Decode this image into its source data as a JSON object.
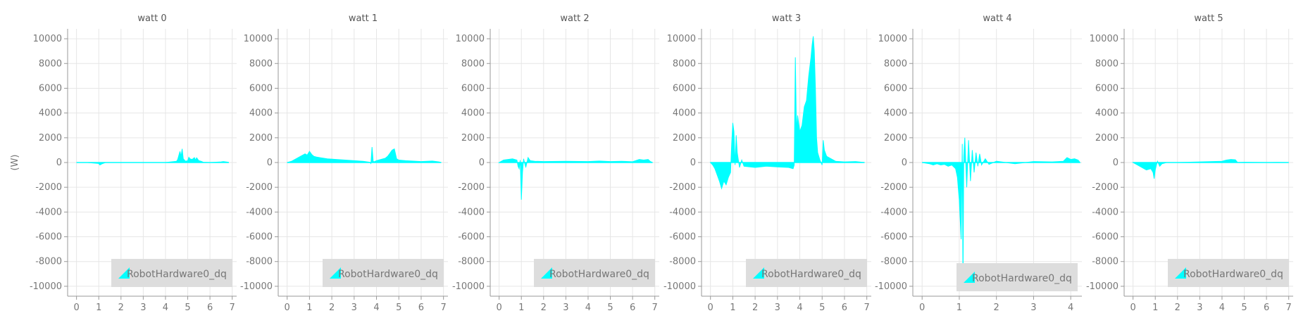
{
  "y_axis_label": "(W)",
  "series_color": "#00ffff",
  "chart_data": [
    {
      "type": "line",
      "title": "watt 0",
      "xlim": [
        -0.4,
        7.2
      ],
      "xticks": [
        "0",
        "1",
        "2",
        "3",
        "4",
        "5",
        "6",
        "7"
      ],
      "ylim": [
        -10800,
        10800
      ],
      "yticks": [
        "10000",
        "8000",
        "6000",
        "4000",
        "2000",
        "0",
        "-2000",
        "-4000",
        "-6000",
        "-8000",
        "-10000"
      ],
      "legend": "RobotHardware0_dq",
      "legend_anchor": "bottom-right",
      "series": [
        {
          "name": "RobotHardware0_dq",
          "x": [
            0,
            0.5,
            1.0,
            1.05,
            1.15,
            1.3,
            2,
            3,
            4,
            4.5,
            4.55,
            4.65,
            4.7,
            4.75,
            4.8,
            4.85,
            4.9,
            5.0,
            5.05,
            5.1,
            5.2,
            5.3,
            5.35,
            5.4,
            5.5,
            5.6,
            5.7,
            6.0,
            6.5,
            6.6,
            6.8,
            6.85
          ],
          "y": [
            0,
            0,
            -80,
            -200,
            -100,
            0,
            0,
            0,
            0,
            100,
            250,
            900,
            500,
            1100,
            300,
            200,
            100,
            150,
            420,
            300,
            250,
            400,
            200,
            380,
            150,
            100,
            20,
            0,
            50,
            80,
            30,
            0
          ]
        }
      ]
    },
    {
      "type": "line",
      "title": "watt 1",
      "xlim": [
        -0.4,
        7.2
      ],
      "xticks": [
        "0",
        "1",
        "2",
        "3",
        "4",
        "5",
        "6",
        "7"
      ],
      "ylim": [
        -10800,
        10800
      ],
      "yticks": [
        "10000",
        "8000",
        "6000",
        "4000",
        "2000",
        "0",
        "-2000",
        "-4000",
        "-6000",
        "-8000",
        "-10000"
      ],
      "legend": "RobotHardware0_dq",
      "legend_anchor": "bottom-right",
      "series": [
        {
          "name": "RobotHardware0_dq",
          "x": [
            0,
            0.2,
            0.4,
            0.6,
            0.8,
            0.9,
            1.0,
            1.1,
            1.2,
            1.3,
            1.5,
            1.8,
            2.2,
            2.6,
            3.0,
            3.4,
            3.7,
            3.75,
            3.8,
            3.85,
            3.9,
            4.0,
            4.2,
            4.4,
            4.5,
            4.6,
            4.7,
            4.8,
            4.9,
            5.0,
            5.3,
            6.0,
            6.5,
            6.8,
            6.9
          ],
          "y": [
            0,
            100,
            300,
            500,
            700,
            600,
            900,
            650,
            500,
            450,
            380,
            300,
            250,
            200,
            150,
            100,
            20,
            -80,
            1250,
            100,
            60,
            150,
            250,
            350,
            500,
            750,
            1000,
            1100,
            300,
            200,
            150,
            80,
            120,
            50,
            0
          ]
        }
      ]
    },
    {
      "type": "line",
      "title": "watt 2",
      "xlim": [
        -0.4,
        7.2
      ],
      "xticks": [
        "0",
        "1",
        "2",
        "3",
        "4",
        "5",
        "6",
        "7"
      ],
      "ylim": [
        -10800,
        10800
      ],
      "yticks": [
        "10000",
        "8000",
        "6000",
        "4000",
        "2000",
        "0",
        "-2000",
        "-4000",
        "-6000",
        "-8000",
        "-10000"
      ],
      "legend": "RobotHardware0_dq",
      "legend_anchor": "bottom-right",
      "series": [
        {
          "name": "RobotHardware0_dq",
          "x": [
            0,
            0.2,
            0.4,
            0.6,
            0.8,
            0.85,
            0.9,
            0.95,
            1.0,
            1.05,
            1.1,
            1.2,
            1.3,
            1.4,
            1.6,
            2.0,
            3.0,
            4.0,
            4.5,
            5.0,
            5.5,
            6.0,
            6.3,
            6.5,
            6.7,
            6.8,
            6.9
          ],
          "y": [
            0,
            200,
            250,
            300,
            200,
            -300,
            -500,
            200,
            -3000,
            -800,
            300,
            -400,
            400,
            150,
            100,
            80,
            100,
            80,
            120,
            80,
            100,
            60,
            250,
            200,
            250,
            80,
            0
          ]
        }
      ]
    },
    {
      "type": "line",
      "title": "watt 3",
      "xlim": [
        -0.4,
        7.2
      ],
      "xticks": [
        "0",
        "1",
        "2",
        "3",
        "4",
        "5",
        "6",
        "7"
      ],
      "ylim": [
        -10800,
        10800
      ],
      "yticks": [
        "10000",
        "8000",
        "6000",
        "4000",
        "2000",
        "0",
        "-2000",
        "-4000",
        "-6000",
        "-8000",
        "-10000"
      ],
      "legend": "RobotHardware0_dq",
      "legend_anchor": "bottom-right",
      "series": [
        {
          "name": "RobotHardware0_dq",
          "x": [
            0,
            0.1,
            0.2,
            0.3,
            0.4,
            0.5,
            0.6,
            0.7,
            0.8,
            0.9,
            0.95,
            1.0,
            1.05,
            1.1,
            1.15,
            1.2,
            1.3,
            1.4,
            1.5,
            2.0,
            2.5,
            3.0,
            3.5,
            3.7,
            3.75,
            3.8,
            3.85,
            3.9,
            4.0,
            4.1,
            4.2,
            4.3,
            4.4,
            4.5,
            4.55,
            4.6,
            4.65,
            4.7,
            4.75,
            4.8,
            4.9,
            5.0,
            5.05,
            5.1,
            5.2,
            5.4,
            5.6,
            6.0,
            6.5,
            6.9
          ],
          "y": [
            0,
            -200,
            -500,
            -1000,
            -1500,
            -2100,
            -1500,
            -1800,
            -1200,
            -800,
            1500,
            3200,
            2500,
            -200,
            2200,
            800,
            -400,
            200,
            -300,
            -400,
            -300,
            -350,
            -400,
            -500,
            -200,
            8500,
            2500,
            3800,
            2500,
            3000,
            4500,
            5000,
            7000,
            8500,
            9500,
            10200,
            9000,
            6000,
            2000,
            800,
            200,
            -200,
            1800,
            1000,
            500,
            300,
            100,
            50,
            80,
            0
          ]
        }
      ]
    },
    {
      "type": "line",
      "title": "watt 4",
      "xlim": [
        -0.25,
        4.3
      ],
      "xticks": [
        "0",
        "1",
        "2",
        "3",
        "4"
      ],
      "ylim": [
        -10800,
        10800
      ],
      "yticks": [
        "10000",
        "8000",
        "6000",
        "4000",
        "2000",
        "0",
        "-2000",
        "-4000",
        "-6000",
        "-8000",
        "-10000"
      ],
      "legend": "RobotHardware0_dq",
      "legend_anchor": "bottom-right",
      "series": [
        {
          "name": "RobotHardware0_dq",
          "x": [
            0,
            0.2,
            0.3,
            0.4,
            0.5,
            0.6,
            0.7,
            0.8,
            0.9,
            0.95,
            1.0,
            1.05,
            1.08,
            1.1,
            1.12,
            1.15,
            1.2,
            1.25,
            1.3,
            1.35,
            1.4,
            1.45,
            1.5,
            1.55,
            1.6,
            1.7,
            1.8,
            2.0,
            2.5,
            3.0,
            3.5,
            3.8,
            3.9,
            4.0,
            4.1,
            4.2,
            4.25
          ],
          "y": [
            0,
            -100,
            -200,
            -100,
            -200,
            -150,
            -300,
            -200,
            -500,
            -1200,
            -3000,
            -6200,
            1500,
            -10200,
            500,
            2000,
            -2000,
            1800,
            -1500,
            1000,
            -800,
            800,
            -300,
            700,
            -200,
            300,
            -150,
            100,
            -100,
            80,
            50,
            100,
            400,
            250,
            300,
            200,
            0
          ]
        }
      ]
    },
    {
      "type": "line",
      "title": "watt 5",
      "xlim": [
        -0.4,
        7.2
      ],
      "xticks": [
        "0",
        "1",
        "2",
        "3",
        "4",
        "5",
        "6",
        "7"
      ],
      "ylim": [
        -10800,
        10800
      ],
      "yticks": [
        "10000",
        "8000",
        "6000",
        "4000",
        "2000",
        "0",
        "-2000",
        "-4000",
        "-6000",
        "-8000",
        "-10000"
      ],
      "legend": "RobotHardware0_dq",
      "legend_anchor": "bottom-right",
      "series": [
        {
          "name": "RobotHardware0_dq",
          "x": [
            0,
            0.2,
            0.4,
            0.6,
            0.8,
            0.9,
            0.95,
            1.0,
            1.05,
            1.1,
            1.2,
            1.3,
            1.5,
            2.0,
            3.0,
            4.0,
            4.2,
            4.4,
            4.6,
            4.7,
            5.0,
            6.0,
            6.5,
            7.0
          ],
          "y": [
            0,
            -200,
            -400,
            -600,
            -500,
            -800,
            -1300,
            -600,
            -200,
            100,
            -300,
            -100,
            0,
            0,
            50,
            100,
            200,
            250,
            220,
            0,
            20,
            0,
            10,
            0
          ]
        }
      ]
    }
  ]
}
